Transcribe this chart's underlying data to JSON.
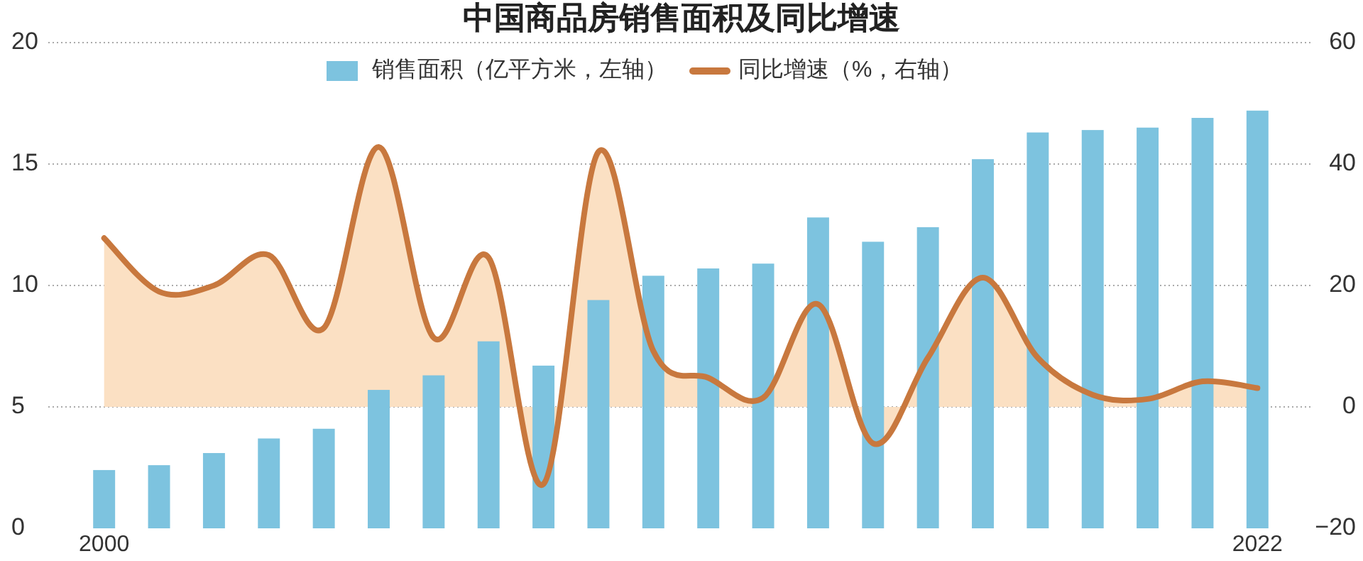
{
  "chart_data": {
    "type": "bar",
    "title": "中国商品房销售面积及同比增速",
    "categories": [
      "2000",
      null,
      null,
      null,
      null,
      null,
      null,
      null,
      null,
      null,
      null,
      null,
      null,
      null,
      null,
      null,
      null,
      null,
      null,
      null,
      null,
      "2022"
    ],
    "series": [
      {
        "name": "销售面积（亿平方米，左轴）",
        "color": "#7dc3df",
        "values": [
          2.4,
          2.6,
          3.1,
          3.7,
          4.1,
          5.7,
          6.3,
          7.7,
          6.7,
          9.4,
          10.4,
          10.7,
          10.9,
          12.8,
          11.8,
          12.4,
          15.2,
          16.3,
          16.4,
          16.5,
          16.9,
          17.2
        ]
      },
      {
        "name": "同比增速（%，右轴）",
        "type": "area",
        "axis": "y2",
        "color": "#c8783e",
        "values": [
          27.8,
          19,
          20,
          25,
          13,
          42.8,
          11.4,
          24.6,
          -12.7,
          42,
          9.2,
          4.8,
          1.5,
          16.9,
          -6,
          8.1,
          21.3,
          8.1,
          2,
          1.3,
          4.2,
          3.1
        ]
      }
    ],
    "ylim": [
      0,
      20
    ],
    "yticks": [
      0,
      5,
      10,
      15,
      20
    ],
    "y2lim": [
      -20,
      60
    ],
    "y2ticks": [
      {
        "value": -20,
        "label": "−20"
      },
      0,
      20,
      40,
      60
    ],
    "grid": "y",
    "legend": "top"
  }
}
